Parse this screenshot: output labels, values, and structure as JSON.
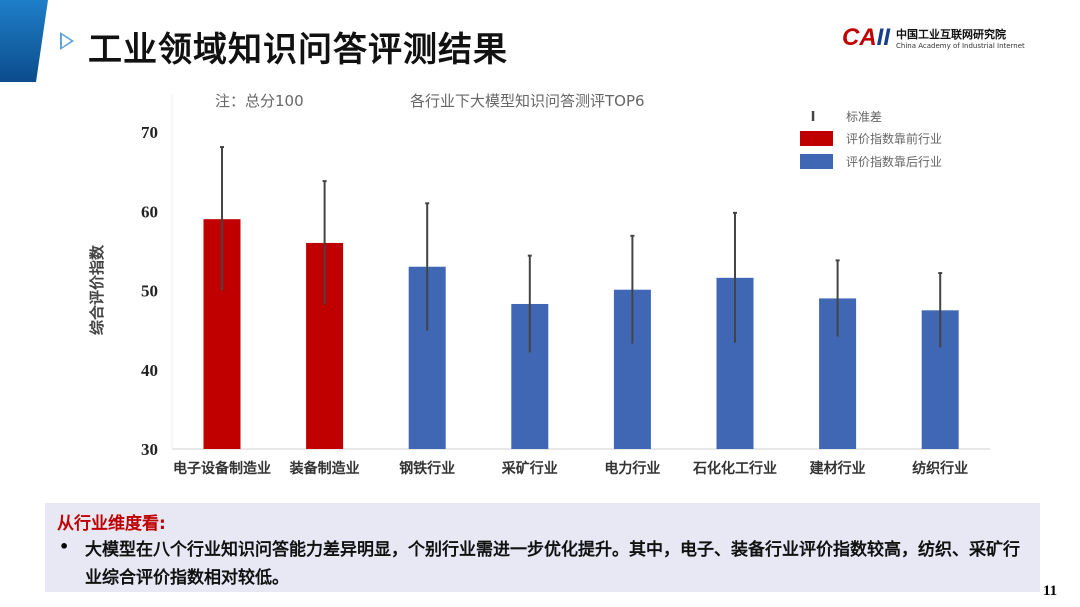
{
  "header": {
    "title": "工业领域知识问答评测结果",
    "logo_mark": "CAII",
    "logo_cn": "中国工业互联网研究院",
    "logo_en": "China Academy of Industrial Internet"
  },
  "chart_data": {
    "type": "bar",
    "title": "各行业下大模型知识问答测评TOP6",
    "note": "注：总分100",
    "ylabel": "综合评价指数",
    "xlabel": "",
    "ylim": [
      30,
      70
    ],
    "yticks": [
      "30",
      "40",
      "50",
      "60",
      "70"
    ],
    "categories": [
      "电子设备制造业",
      "装备制造业",
      "钢铁行业",
      "采矿行业",
      "电力行业",
      "石化化工行业",
      "建材行业",
      "纺织行业"
    ],
    "values": [
      59,
      56,
      53,
      48.3,
      50.1,
      51.6,
      49,
      47.5
    ],
    "error_upper": [
      68.1,
      63.8,
      61,
      54.4,
      56.9,
      59.8,
      53.8,
      52.2
    ],
    "error_lower": [
      50,
      48.2,
      44.9,
      42.2,
      43.3,
      43.4,
      44.2,
      42.8
    ],
    "group": [
      "top",
      "top",
      "bottom",
      "bottom",
      "bottom",
      "bottom",
      "bottom",
      "bottom"
    ],
    "legend": {
      "position": "top-right",
      "items": [
        {
          "label": "标准差",
          "type": "errorbar"
        },
        {
          "label": "评价指数靠前行业",
          "color": "#c00000"
        },
        {
          "label": "评价指数靠后行业",
          "color": "#3f67b4"
        }
      ]
    },
    "grid": false
  },
  "summary": {
    "heading": "从行业维度看:",
    "bullet": "•",
    "text": "大模型在八个行业知识问答能力差异明显，个别行业需进一步优化提升。其中，电子、装备行业评价指数较高，纺织、采矿行业综合评价指数相对较低。"
  },
  "page_number": "11"
}
